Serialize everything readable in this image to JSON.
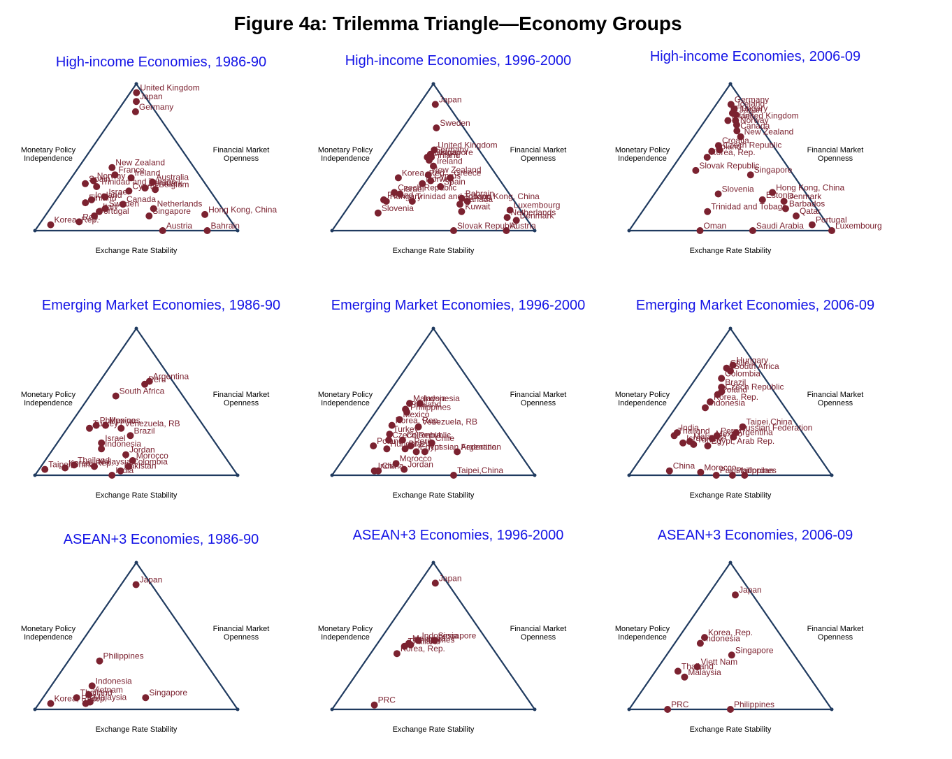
{
  "figure_title": "Figure 4a: Trilemma Triangle—Economy Groups",
  "axis_labels": {
    "left": [
      "Monetary Policy",
      "Independence"
    ],
    "right": [
      "Financial Market",
      "Openness"
    ],
    "bottom": "Exchange Rate Stability"
  },
  "colors": {
    "title": "#1414e6",
    "triangle": "#1f3a5f",
    "points": "#7b2230"
  },
  "chart_data": [
    {
      "type": "scatter",
      "title": "High-income Economies, 1986-90",
      "points": [
        {
          "label": "United Kingdom",
          "x": 0.52,
          "y": 0.94
        },
        {
          "label": "Japan",
          "x": 0.5,
          "y": 0.88
        },
        {
          "label": "Germany",
          "x": 0.48,
          "y": 0.81
        },
        {
          "label": "New Zealand",
          "x": 0.29,
          "y": 0.43
        },
        {
          "label": "France",
          "x": 0.33,
          "y": 0.38
        },
        {
          "label": "Ireland",
          "x": 0.46,
          "y": 0.36
        },
        {
          "label": "Norway",
          "x": 0.18,
          "y": 0.34
        },
        {
          "label": "Spain",
          "x": 0.13,
          "y": 0.32
        },
        {
          "label": "Trinidad and Tobago",
          "x": 0.22,
          "y": 0.3
        },
        {
          "label": "Australia",
          "x": 0.62,
          "y": 0.33
        },
        {
          "label": "Denmark",
          "x": 0.56,
          "y": 0.29
        },
        {
          "label": "Belgium",
          "x": 0.63,
          "y": 0.28
        },
        {
          "label": "Cyprus",
          "x": 0.45,
          "y": 0.27
        },
        {
          "label": "Israel",
          "x": 0.3,
          "y": 0.23
        },
        {
          "label": "Iceland",
          "x": 0.22,
          "y": 0.21
        },
        {
          "label": "Finland",
          "x": 0.19,
          "y": 0.19
        },
        {
          "label": "Canada",
          "x": 0.42,
          "y": 0.18
        },
        {
          "label": "Sweden",
          "x": 0.32,
          "y": 0.15
        },
        {
          "label": "Italy",
          "x": 0.29,
          "y": 0.13
        },
        {
          "label": "Portugal",
          "x": 0.27,
          "y": 0.1
        },
        {
          "label": "Netherlands",
          "x": 0.6,
          "y": 0.15
        },
        {
          "label": "Singapore",
          "x": 0.57,
          "y": 0.1
        },
        {
          "label": "Hong Kong, China",
          "x": 0.88,
          "y": 0.11
        },
        {
          "label": "Korea, Rep.",
          "x": 0.06,
          "y": 0.04
        },
        {
          "label": "Rep.",
          "x": 0.2,
          "y": 0.06
        },
        {
          "label": "Austria",
          "x": 0.63,
          "y": 0.0
        },
        {
          "label": "Bahrain",
          "x": 0.85,
          "y": 0.0
        }
      ]
    },
    {
      "type": "scatter",
      "title": "High-income Economies, 1996-2000",
      "points": [
        {
          "label": "Japan",
          "x": 0.57,
          "y": 0.86
        },
        {
          "label": "Sweden",
          "x": 0.55,
          "y": 0.7
        },
        {
          "label": "United Kingdom",
          "x": 0.51,
          "y": 0.55
        },
        {
          "label": "Germany",
          "x": 0.47,
          "y": 0.52
        },
        {
          "label": "Austria",
          "x": 0.44,
          "y": 0.5
        },
        {
          "label": "Singapore",
          "x": 0.48,
          "y": 0.5
        },
        {
          "label": "Finland",
          "x": 0.46,
          "y": 0.48
        },
        {
          "label": "Ireland",
          "x": 0.5,
          "y": 0.44
        },
        {
          "label": "Korea, Rep.",
          "x": 0.23,
          "y": 0.36
        },
        {
          "label": "New Zealand",
          "x": 0.46,
          "y": 0.38
        },
        {
          "label": "Greece",
          "x": 0.63,
          "y": 0.36
        },
        {
          "label": "Norway",
          "x": 0.42,
          "y": 0.32
        },
        {
          "label": "Cyprus",
          "x": 0.48,
          "y": 0.34
        },
        {
          "label": "Spain",
          "x": 0.55,
          "y": 0.3
        },
        {
          "label": "Czech Republic",
          "x": 0.24,
          "y": 0.26
        },
        {
          "label": "Israel",
          "x": 0.28,
          "y": 0.25
        },
        {
          "label": "Poland",
          "x": 0.19,
          "y": 0.21
        },
        {
          "label": "Hungary",
          "x": 0.21,
          "y": 0.2
        },
        {
          "label": "Trinidad and Tobago",
          "x": 0.37,
          "y": 0.2
        },
        {
          "label": "Bahrain",
          "x": 0.68,
          "y": 0.22
        },
        {
          "label": "Hong Kong, China",
          "x": 0.71,
          "y": 0.2
        },
        {
          "label": "Canada",
          "x": 0.66,
          "y": 0.18
        },
        {
          "label": "Kuwait",
          "x": 0.66,
          "y": 0.13
        },
        {
          "label": "Slovenia",
          "x": 0.19,
          "y": 0.12
        },
        {
          "label": "Luxembourg",
          "x": 0.94,
          "y": 0.14
        },
        {
          "label": "Netherlands",
          "x": 0.9,
          "y": 0.09
        },
        {
          "label": "Denmark",
          "x": 0.94,
          "y": 0.07
        },
        {
          "label": "Slovak Republic",
          "x": 0.6,
          "y": 0.0
        },
        {
          "label": "Austria",
          "x": 0.86,
          "y": 0.0
        }
      ]
    },
    {
      "type": "scatter",
      "title": "High-income Economies, 2006-09",
      "points": [
        {
          "label": "Germany",
          "x": 0.52,
          "y": 0.86
        },
        {
          "label": "Iceland",
          "x": 0.61,
          "y": 0.83
        },
        {
          "label": "Japan",
          "x": 0.63,
          "y": 0.79
        },
        {
          "label": "Hungary",
          "x": 0.55,
          "y": 0.8
        },
        {
          "label": "Israel",
          "x": 0.45,
          "y": 0.75
        },
        {
          "label": "United Kingdom",
          "x": 0.6,
          "y": 0.75
        },
        {
          "label": "Norway",
          "x": 0.61,
          "y": 0.72
        },
        {
          "label": "Canada",
          "x": 0.6,
          "y": 0.68
        },
        {
          "label": "New Zealand",
          "x": 0.64,
          "y": 0.64
        },
        {
          "label": "Croatia",
          "x": 0.36,
          "y": 0.58
        },
        {
          "label": "Czech Republic",
          "x": 0.38,
          "y": 0.55
        },
        {
          "label": "Poland",
          "x": 0.3,
          "y": 0.54
        },
        {
          "label": "Korea, Rep.",
          "x": 0.27,
          "y": 0.5
        },
        {
          "label": "Slovak Republic",
          "x": 0.21,
          "y": 0.41
        },
        {
          "label": "Singapore",
          "x": 0.66,
          "y": 0.38
        },
        {
          "label": "Slovenia",
          "x": 0.42,
          "y": 0.25
        },
        {
          "label": "Hong Kong, China",
          "x": 0.78,
          "y": 0.26
        },
        {
          "label": "Estonia",
          "x": 0.7,
          "y": 0.21
        },
        {
          "label": "Denmark",
          "x": 0.83,
          "y": 0.2
        },
        {
          "label": "Barbados",
          "x": 0.82,
          "y": 0.15
        },
        {
          "label": "Trinidad and Tobago",
          "x": 0.37,
          "y": 0.13
        },
        {
          "label": "Qatar",
          "x": 0.86,
          "y": 0.1
        },
        {
          "label": "Portugal",
          "x": 0.92,
          "y": 0.04
        },
        {
          "label": "Luxembourg",
          "x": 1.0,
          "y": 0.0
        },
        {
          "label": "Oman",
          "x": 0.35,
          "y": 0.0
        },
        {
          "label": "Saudi Arabia",
          "x": 0.61,
          "y": 0.0
        }
      ]
    },
    {
      "type": "scatter",
      "title": "Emerging Market Economies, 1986-90",
      "points": [
        {
          "label": "Argentina",
          "x": 0.68,
          "y": 0.64
        },
        {
          "label": "Peru",
          "x": 0.61,
          "y": 0.62
        },
        {
          "label": "South Africa",
          "x": 0.28,
          "y": 0.54
        },
        {
          "label": "Philippines",
          "x": 0.2,
          "y": 0.34
        },
        {
          "label": "Turkey",
          "x": 0.16,
          "y": 0.32
        },
        {
          "label": "Mexico",
          "x": 0.27,
          "y": 0.34
        },
        {
          "label": "Venezuela, RB",
          "x": 0.39,
          "y": 0.32
        },
        {
          "label": "Brazil",
          "x": 0.46,
          "y": 0.27
        },
        {
          "label": "Israel",
          "x": 0.28,
          "y": 0.22
        },
        {
          "label": "Indonesia",
          "x": 0.29,
          "y": 0.18
        },
        {
          "label": "Jordan",
          "x": 0.44,
          "y": 0.14
        },
        {
          "label": "Morocco",
          "x": 0.48,
          "y": 0.1
        },
        {
          "label": "Thailand",
          "x": 0.17,
          "y": 0.07
        },
        {
          "label": "Malaysia",
          "x": 0.28,
          "y": 0.06
        },
        {
          "label": "Colombia",
          "x": 0.46,
          "y": 0.06
        },
        {
          "label": "Korea, Rep.",
          "x": 0.13,
          "y": 0.05
        },
        {
          "label": "Taipei,China",
          "x": 0.03,
          "y": 0.04
        },
        {
          "label": "India",
          "x": 0.38,
          "y": 0.0
        },
        {
          "label": "Pakistan",
          "x": 0.42,
          "y": 0.03
        }
      ]
    },
    {
      "type": "scatter",
      "title": "Emerging Market Economies, 1996-2000",
      "points": [
        {
          "label": "Indonesia",
          "x": 0.37,
          "y": 0.49
        },
        {
          "label": "Malaysia",
          "x": 0.27,
          "y": 0.49
        },
        {
          "label": "Thailand",
          "x": 0.25,
          "y": 0.45
        },
        {
          "label": "Philippines",
          "x": 0.27,
          "y": 0.43
        },
        {
          "label": "Mexico",
          "x": 0.23,
          "y": 0.38
        },
        {
          "label": "Korea, Rep.",
          "x": 0.19,
          "y": 0.34
        },
        {
          "label": "Venezuela, RB",
          "x": 0.39,
          "y": 0.33
        },
        {
          "label": "Turkey",
          "x": 0.2,
          "y": 0.28
        },
        {
          "label": "Czech Republic",
          "x": 0.21,
          "y": 0.24
        },
        {
          "label": "Colombia",
          "x": 0.3,
          "y": 0.24
        },
        {
          "label": "Chile",
          "x": 0.49,
          "y": 0.22
        },
        {
          "label": "Peru",
          "x": 0.36,
          "y": 0.2
        },
        {
          "label": "Brazil",
          "x": 0.33,
          "y": 0.18
        },
        {
          "label": "Hungary",
          "x": 0.22,
          "y": 0.18
        },
        {
          "label": "Poland",
          "x": 0.13,
          "y": 0.2
        },
        {
          "label": "Argentina",
          "x": 0.64,
          "y": 0.16
        },
        {
          "label": "Russian Federation",
          "x": 0.45,
          "y": 0.16
        },
        {
          "label": "Egypt",
          "x": 0.4,
          "y": 0.16
        },
        {
          "label": "Morocco",
          "x": 0.3,
          "y": 0.08
        },
        {
          "label": "Jordan",
          "x": 0.35,
          "y": 0.04
        },
        {
          "label": "China",
          "x": 0.22,
          "y": 0.03
        },
        {
          "label": "India",
          "x": 0.2,
          "y": 0.03
        },
        {
          "label": "Taipei,China",
          "x": 0.6,
          "y": 0.0
        }
      ]
    },
    {
      "type": "scatter",
      "title": "Emerging Market Economies, 2006-09",
      "points": [
        {
          "label": "Hungary",
          "x": 0.55,
          "y": 0.75
        },
        {
          "label": "Chile",
          "x": 0.43,
          "y": 0.73
        },
        {
          "label": "South Africa",
          "x": 0.5,
          "y": 0.71
        },
        {
          "label": "Colombia",
          "x": 0.37,
          "y": 0.66
        },
        {
          "label": "Brazil",
          "x": 0.39,
          "y": 0.6
        },
        {
          "label": "Czech Republic",
          "x": 0.4,
          "y": 0.57
        },
        {
          "label": "Poland",
          "x": 0.36,
          "y": 0.55
        },
        {
          "label": "Korea, Rep.",
          "x": 0.3,
          "y": 0.5
        },
        {
          "label": "Indonesia",
          "x": 0.27,
          "y": 0.46
        },
        {
          "label": "Taipei,China",
          "x": 0.59,
          "y": 0.33
        },
        {
          "label": "Russian Federation",
          "x": 0.54,
          "y": 0.29
        },
        {
          "label": "Argentina",
          "x": 0.52,
          "y": 0.26
        },
        {
          "label": "India",
          "x": 0.13,
          "y": 0.29
        },
        {
          "label": "Thailand",
          "x": 0.12,
          "y": 0.27
        },
        {
          "label": "Peru",
          "x": 0.41,
          "y": 0.27
        },
        {
          "label": "Mexico",
          "x": 0.38,
          "y": 0.25
        },
        {
          "label": "Malaysia",
          "x": 0.24,
          "y": 0.23
        },
        {
          "label": "Turkey",
          "x": 0.27,
          "y": 0.21
        },
        {
          "label": "Egypt, Arab Rep.",
          "x": 0.36,
          "y": 0.2
        },
        {
          "label": "Israel",
          "x": 0.2,
          "y": 0.22
        },
        {
          "label": "Philippines",
          "x": 0.51,
          "y": 0.0
        },
        {
          "label": "China",
          "x": 0.19,
          "y": 0.03
        },
        {
          "label": "Morocco",
          "x": 0.35,
          "y": 0.02
        },
        {
          "label": "Pakistan",
          "x": 0.43,
          "y": 0.0
        },
        {
          "label": "Jordan",
          "x": 0.57,
          "y": 0.0
        }
      ]
    },
    {
      "type": "scatter",
      "title": "ASEAN+3 Economies, 1986-90",
      "points": [
        {
          "label": "Japan",
          "x": 0.49,
          "y": 0.85
        },
        {
          "label": "Philippines",
          "x": 0.23,
          "y": 0.33
        },
        {
          "label": "Indonesia",
          "x": 0.24,
          "y": 0.16
        },
        {
          "label": "Vietnam",
          "x": 0.24,
          "y": 0.1
        },
        {
          "label": "Singapore",
          "x": 0.55,
          "y": 0.08
        },
        {
          "label": "Malaysia",
          "x": 0.26,
          "y": 0.05
        },
        {
          "label": "Thailand",
          "x": 0.18,
          "y": 0.08
        },
        {
          "label": "Korea, Rep.",
          "x": 0.06,
          "y": 0.04
        },
        {
          "label": "Rep.",
          "x": 0.24,
          "y": 0.04
        }
      ]
    },
    {
      "type": "scatter",
      "title": "ASEAN+3 Economies, 1996-2000",
      "points": [
        {
          "label": "Japan",
          "x": 0.57,
          "y": 0.86
        },
        {
          "label": "Singapore",
          "x": 0.51,
          "y": 0.47
        },
        {
          "label": "Indonesia",
          "x": 0.36,
          "y": 0.47
        },
        {
          "label": "Malaysia",
          "x": 0.28,
          "y": 0.45
        },
        {
          "label": "Philippines",
          "x": 0.3,
          "y": 0.44
        },
        {
          "label": "Thailand",
          "x": 0.25,
          "y": 0.43
        },
        {
          "label": "Korea, Rep.",
          "x": 0.21,
          "y": 0.38
        },
        {
          "label": "PRC",
          "x": 0.2,
          "y": 0.03
        }
      ]
    },
    {
      "type": "scatter",
      "title": "ASEAN+3 Economies, 2006-09",
      "points": [
        {
          "label": "Japan",
          "x": 0.61,
          "y": 0.78
        },
        {
          "label": "Korea, Rep.",
          "x": 0.25,
          "y": 0.49
        },
        {
          "label": "Indonesia",
          "x": 0.23,
          "y": 0.45
        },
        {
          "label": "Singapore",
          "x": 0.51,
          "y": 0.37
        },
        {
          "label": "Viett Nam",
          "x": 0.27,
          "y": 0.29
        },
        {
          "label": "Thailand",
          "x": 0.15,
          "y": 0.26
        },
        {
          "label": "Malaysia",
          "x": 0.21,
          "y": 0.22
        },
        {
          "label": "PRC",
          "x": 0.19,
          "y": 0.0
        },
        {
          "label": "Philippines",
          "x": 0.5,
          "y": 0.0
        }
      ]
    }
  ]
}
